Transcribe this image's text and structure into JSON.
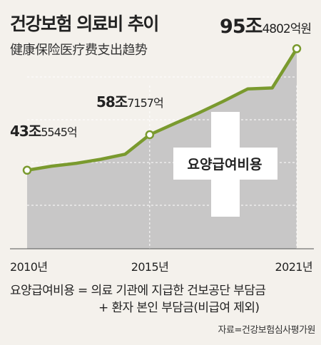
{
  "title_ko": "건강보험 의료비 추이",
  "title_zh": "健康保险医疗费支出趋势",
  "chart_data": {
    "type": "area",
    "x": [
      2010,
      2011,
      2012,
      2013,
      2014,
      2015,
      2016,
      2017,
      2018,
      2019,
      2020,
      2021
    ],
    "series": [
      {
        "values": [
          43.5545,
          45.3,
          46.5,
          48.2,
          50.4,
          58.7157,
          63.4,
          68.0,
          73.0,
          78.3,
          78.7,
          95.4802
        ]
      }
    ],
    "unit": "조",
    "ylim": [
      10,
      98
    ],
    "annotations": [
      {
        "year": 2010,
        "big": "43조",
        "small": "5545억"
      },
      {
        "year": 2015,
        "big": "58조",
        "small": "7157억"
      },
      {
        "year": 2021,
        "big": "95조",
        "small": "4802억원"
      }
    ],
    "x_tick_labels": [
      "2010년",
      "2015년",
      "2021년"
    ],
    "area_label": "요양급여비용",
    "line_color": "#7a9a2e",
    "area_color": "#c8c7c7",
    "grid": true
  },
  "footnote_line1": "요양급여비용 = 의료 기관에 지급한 건보공단 부담금",
  "footnote_line2": "+ 환자 본인 부담금(비급여 제외)",
  "source": "자료=건강보험심사평가원"
}
